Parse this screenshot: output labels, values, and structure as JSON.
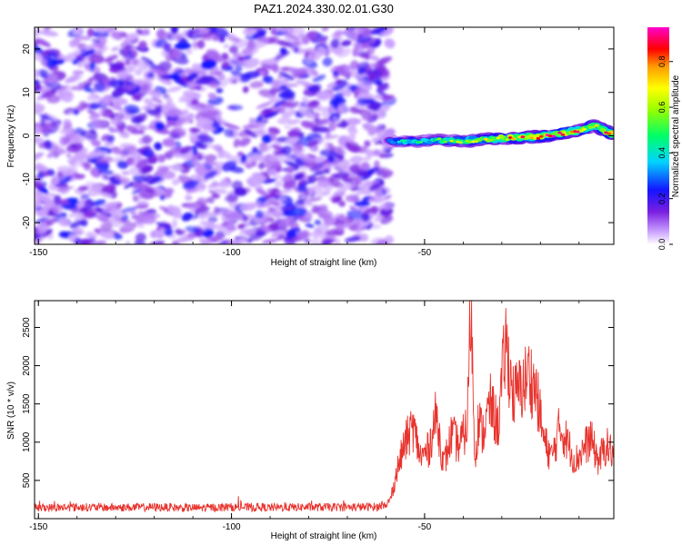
{
  "title": "PAZ1.2024.330.02.01.G30",
  "colors": {
    "snr_line": "#e8332d",
    "noise_purple": "#8a2be2",
    "frame": "#000000"
  },
  "chart_data": [
    {
      "type": "heatmap",
      "xlabel": "Height of straight line (km)",
      "ylabel": "Frequency (Hz)",
      "xlim": [
        -151,
        -1
      ],
      "ylim": [
        -25,
        25
      ],
      "xticks": [
        -150,
        -100,
        -50
      ],
      "yticks": [
        -20,
        -10,
        0,
        10,
        20
      ],
      "colorbar": {
        "label": "Normalized spectral amplitude",
        "range": [
          0,
          0.95
        ],
        "ticks": [
          "0.0",
          "0.2",
          "0.4",
          "0.6",
          "0.8"
        ],
        "colormap": "rainbow"
      },
      "noise_region": {
        "x": [
          -151,
          -59
        ],
        "amplitude": [
          0.05,
          0.25
        ]
      },
      "signal_ridge": [
        {
          "x": -59,
          "y": -1.2,
          "amp": 0.35
        },
        {
          "x": -55,
          "y": -1.4,
          "amp": 0.45
        },
        {
          "x": -50,
          "y": -1.2,
          "amp": 0.5
        },
        {
          "x": -45,
          "y": -1.0,
          "amp": 0.55
        },
        {
          "x": -40,
          "y": -1.2,
          "amp": 0.6
        },
        {
          "x": -35,
          "y": -0.9,
          "amp": 0.65
        },
        {
          "x": -30,
          "y": -0.5,
          "amp": 0.75
        },
        {
          "x": -25,
          "y": -0.4,
          "amp": 0.8
        },
        {
          "x": -20,
          "y": -0.2,
          "amp": 0.85
        },
        {
          "x": -15,
          "y": 0.5,
          "amp": 0.85
        },
        {
          "x": -10,
          "y": 1.2,
          "amp": 0.8
        },
        {
          "x": -6,
          "y": 2.5,
          "amp": 0.7
        },
        {
          "x": -3,
          "y": 1.0,
          "amp": 0.8
        },
        {
          "x": -1,
          "y": 0.3,
          "amp": 0.95
        }
      ]
    },
    {
      "type": "line",
      "xlabel": "Height of straight line (km)",
      "ylabel": "SNR (10 * v/v)",
      "xlim": [
        -151,
        -1
      ],
      "ylim": [
        0,
        2850
      ],
      "xticks": [
        -150,
        -100,
        -50
      ],
      "yticks": [
        500,
        1000,
        1500,
        2000,
        2500
      ],
      "series": [
        {
          "x": [
            -151,
            -140,
            -130,
            -120,
            -110,
            -100,
            -90,
            -80,
            -70,
            -62,
            -59,
            -57,
            -55,
            -53,
            -51,
            -49,
            -47,
            -45,
            -43,
            -41,
            -39,
            -38,
            -37,
            -36,
            -35,
            -33,
            -31,
            -29,
            -27,
            -25,
            -23,
            -21,
            -19,
            -17,
            -15,
            -13,
            -11,
            -9,
            -7,
            -5,
            -3,
            -1
          ],
          "values": [
            140,
            150,
            145,
            150,
            140,
            150,
            145,
            150,
            150,
            155,
            220,
            650,
            1000,
            1200,
            800,
            900,
            1350,
            700,
            1100,
            950,
            1200,
            2850,
            800,
            1300,
            1100,
            1500,
            1200,
            2300,
            1600,
            1700,
            1900,
            1650,
            1000,
            800,
            1200,
            1000,
            750,
            900,
            1050,
            750,
            950,
            850
          ]
        }
      ]
    }
  ]
}
